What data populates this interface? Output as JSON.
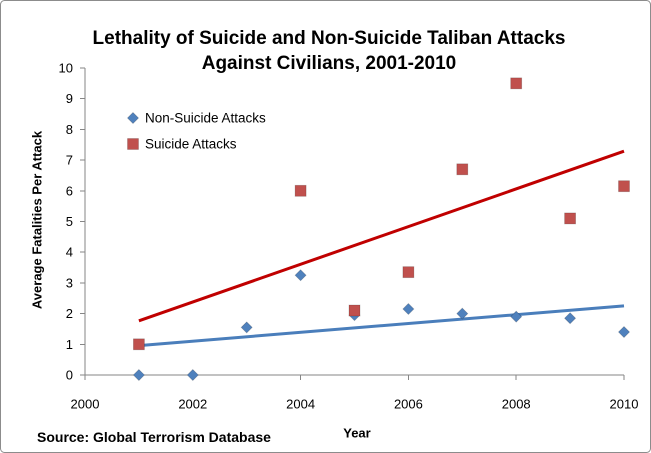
{
  "chart_data": {
    "type": "scatter",
    "title": "Lethality of Suicide and Non-Suicide Taliban Attacks Against Civilians, 2001-2010",
    "xlabel": "Year",
    "ylabel": "Average Fatalities Per Attack",
    "source": "Source: Global Terrorism Database",
    "xlim": [
      2000,
      2010
    ],
    "ylim": [
      0,
      10
    ],
    "xticks": [
      2000,
      2002,
      2004,
      2006,
      2008,
      2010
    ],
    "yticks": [
      0,
      1,
      2,
      3,
      4,
      5,
      6,
      7,
      8,
      9,
      10
    ],
    "grid": false,
    "legend_position": "top-left",
    "series": [
      {
        "name": "Non-Suicide Attacks",
        "marker": "diamond",
        "color": "#4F81BD",
        "trendline": "linear",
        "trendline_color": "#4A7EBB",
        "x": [
          2001,
          2002,
          2003,
          2004,
          2005,
          2006,
          2007,
          2008,
          2009,
          2010
        ],
        "y": [
          0,
          0,
          1.55,
          3.25,
          1.95,
          2.15,
          2.0,
          1.9,
          1.85,
          1.4
        ]
      },
      {
        "name": "Suicide Attacks",
        "marker": "square",
        "color": "#C0504D",
        "trendline": "linear",
        "trendline_color": "#C00000",
        "x": [
          2001,
          2004,
          2005,
          2006,
          2007,
          2008,
          2009,
          2010
        ],
        "y": [
          1.0,
          6.0,
          2.1,
          3.35,
          6.7,
          9.5,
          5.1,
          6.15
        ]
      }
    ]
  }
}
